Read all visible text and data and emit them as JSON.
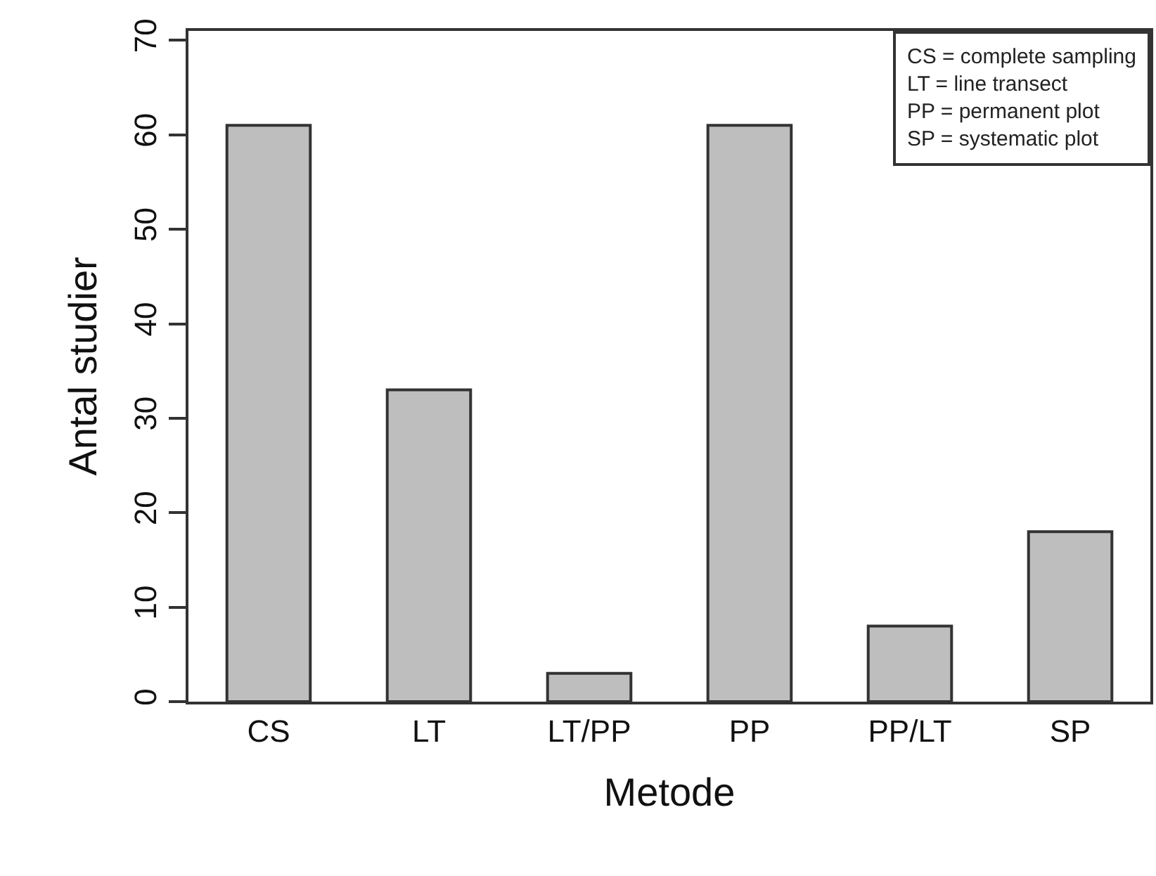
{
  "chart_data": {
    "type": "bar",
    "xlabel": "Metode",
    "ylabel": "Antal studier",
    "categories": [
      "CS",
      "LT",
      "LT/PP",
      "PP",
      "PP/LT",
      "SP"
    ],
    "values": [
      61,
      33,
      3,
      61,
      8,
      18
    ],
    "color": "#bebebe",
    "ylim": [
      0,
      71
    ],
    "yticks": [
      0,
      10,
      20,
      30,
      40,
      50,
      60,
      70
    ],
    "annotations": [
      "CS = complete sampling",
      "LT = line transect",
      "PP = permanent plot",
      "SP = systematic plot"
    ]
  }
}
